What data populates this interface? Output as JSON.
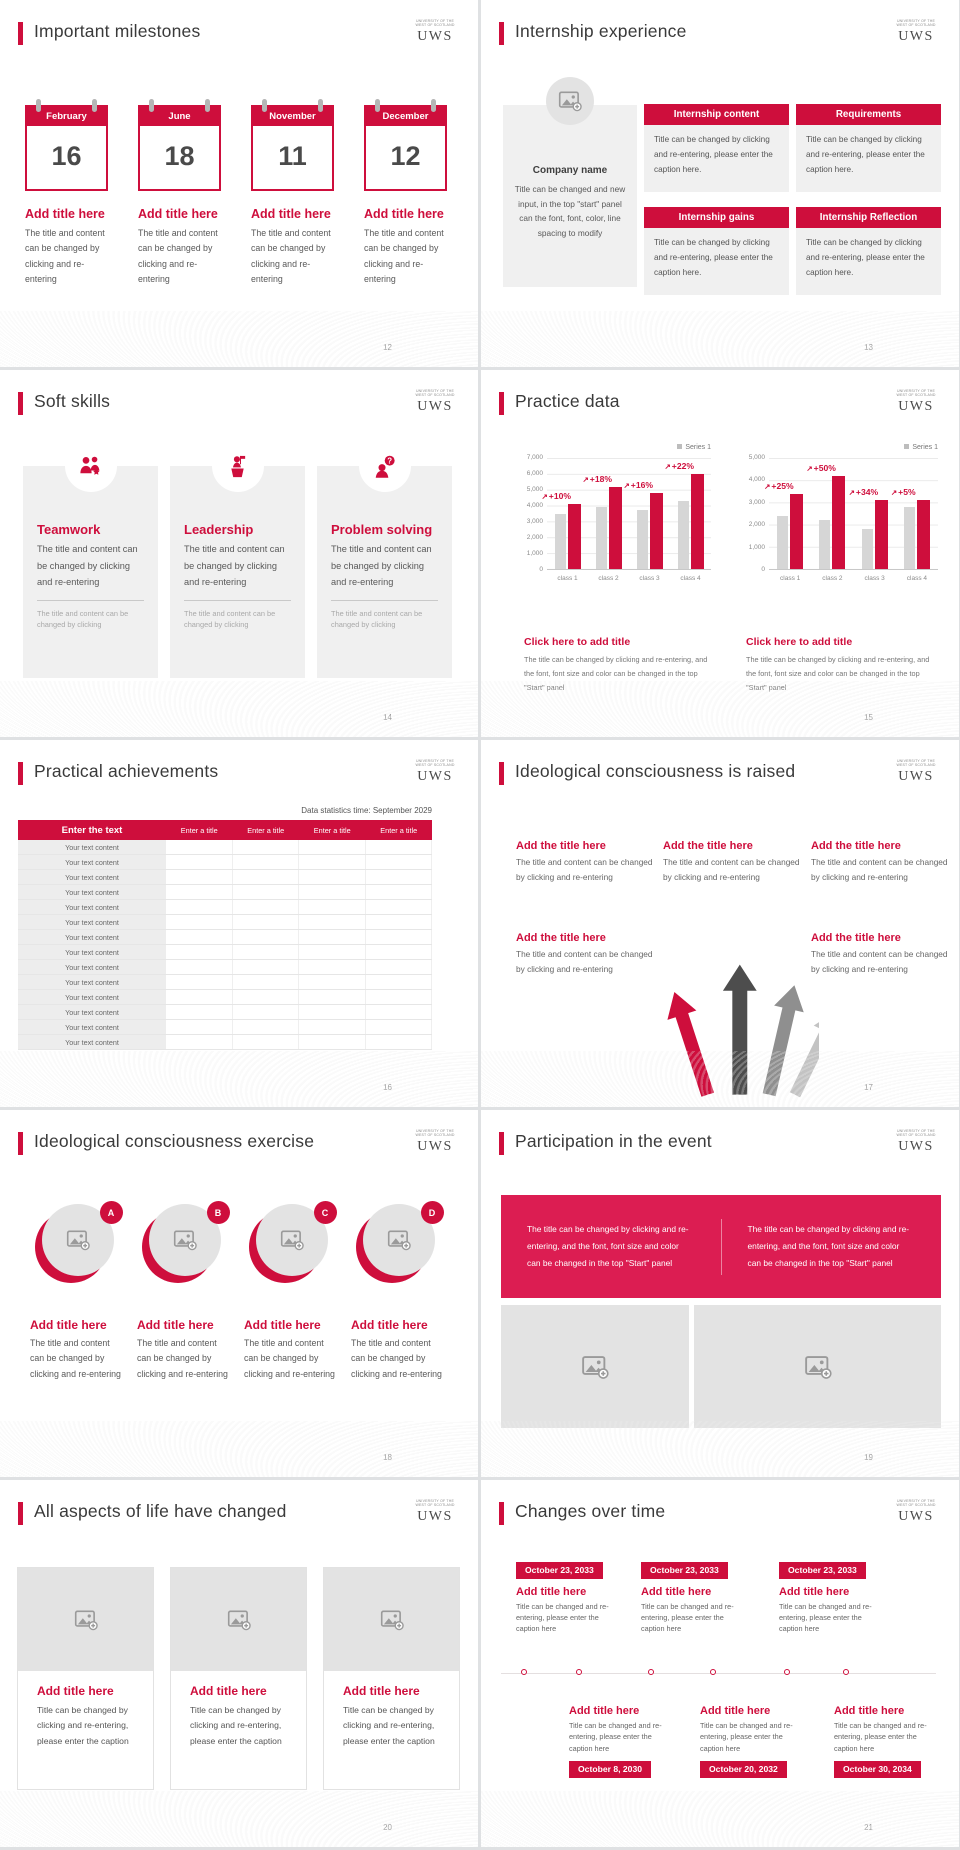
{
  "accent": "#ce0e3c",
  "accent_bright": "#dc1d52",
  "icons": {
    "growth_arrow": "↗"
  },
  "logo": {
    "small": "UNIVERSITY OF THE WEST OF SCOTLAND",
    "text": "UWS"
  },
  "chart_data": [
    {
      "type": "bar",
      "legend": "Series 1",
      "categories": [
        "class 1",
        "class 2",
        "class 3",
        "class 4"
      ],
      "series": [
        {
          "name": "baseline",
          "color": "#d6d6d6",
          "values": [
            3500,
            3900,
            3700,
            4300
          ]
        },
        {
          "name": "Series 1",
          "color": "#ce0e3c",
          "values": [
            4100,
            5200,
            4800,
            6000
          ]
        }
      ],
      "growth_labels": [
        "+10%",
        "+18%",
        "+16%",
        "+22%"
      ],
      "ylim": [
        0,
        7000
      ],
      "ytick_step": 1000,
      "grid": true,
      "legend_position": "top-right",
      "xlabel": "",
      "ylabel": ""
    },
    {
      "type": "bar",
      "legend": "Series 1",
      "categories": [
        "class 1",
        "class 2",
        "class 3",
        "class 4"
      ],
      "series": [
        {
          "name": "baseline",
          "color": "#d6d6d6",
          "values": [
            2400,
            2200,
            1800,
            2800
          ]
        },
        {
          "name": "Series 1",
          "color": "#ce0e3c",
          "values": [
            3400,
            4200,
            3100,
            3100
          ]
        }
      ],
      "growth_labels": [
        "+25%",
        "+50%",
        "+34%",
        "+5%"
      ],
      "ylim": [
        0,
        5000
      ],
      "ytick_step": 1000,
      "grid": true,
      "legend_position": "top-right",
      "xlabel": "",
      "ylabel": ""
    }
  ],
  "slides": [
    {
      "title": "Important milestones",
      "page": "12",
      "calendars": [
        {
          "month": "February",
          "day": "16",
          "heading": "Add title here",
          "body": "The title and content can be changed by clicking and re-entering"
        },
        {
          "month": "June",
          "day": "18",
          "heading": "Add title here",
          "body": "The title and content can be changed by clicking and re-entering"
        },
        {
          "month": "November",
          "day": "11",
          "heading": "Add title here",
          "body": "The title and content can be changed by clicking and re-entering"
        },
        {
          "month": "December",
          "day": "12",
          "heading": "Add title here",
          "body": "The title and content can be changed by clicking and re-entering"
        }
      ]
    },
    {
      "title": "Internship experience",
      "page": "13",
      "company": {
        "name": "Company name",
        "body": "Title can be changed and new input, in the top \"start\" panel can the font, font, color, line spacing to modify"
      },
      "boxes": [
        {
          "heading": "Internship content",
          "body": "Title can be changed by clicking and re-entering, please enter the caption here."
        },
        {
          "heading": "Requirements",
          "body": "Title can be changed by clicking and re-entering, please enter the caption here."
        },
        {
          "heading": "Internship gains",
          "body": "Title can be changed by clicking and re-entering, please enter the caption here."
        },
        {
          "heading": "Internship Reflection",
          "body": "Title can be changed by clicking and re-entering, please enter the caption here."
        }
      ]
    },
    {
      "title": "Soft skills",
      "page": "14",
      "cards": [
        {
          "heading": "Teamwork",
          "body": "The title and content can be changed by clicking and re-entering",
          "footer": "The title and content can be changed by clicking"
        },
        {
          "heading": "Leadership",
          "body": "The title and content can be changed by clicking and re-entering",
          "footer": "The title and content can be changed by clicking"
        },
        {
          "heading": "Problem solving",
          "body": "The title and content can be changed by clicking and re-entering",
          "footer": "The title and content can be changed by clicking"
        }
      ]
    },
    {
      "title": "Practice data",
      "page": "15",
      "captions": [
        {
          "heading": "Click here to add title",
          "body": "The title can be changed by clicking and re-entering, and the font, font size and color can be changed in the top \"Start\" panel"
        },
        {
          "heading": "Click here to add title",
          "body": "The title can be changed by clicking and re-entering, and the font, font size and color can be changed in the top \"Start\" panel"
        }
      ]
    },
    {
      "title": "Practical achievements",
      "page": "16",
      "stats_caption": "Data statistics time: September 2029",
      "table": {
        "header": [
          "Enter the text",
          "Enter a title",
          "Enter a title",
          "Enter a title",
          "Enter a title"
        ],
        "row_label": "Your text content",
        "row_count": 14
      }
    },
    {
      "title": "Ideological consciousness is raised",
      "page": "17",
      "blocks": [
        {
          "heading": "Add the title here",
          "body": "The title and content can be changed by clicking and re-entering"
        },
        {
          "heading": "Add the title here",
          "body": "The title and content can be changed by clicking and re-entering"
        },
        {
          "heading": "Add the title here",
          "body": "The title and content can be changed by clicking and re-entering"
        },
        {
          "heading": "Add the title here",
          "body": "The title and content can be changed by clicking and re-entering"
        },
        {
          "heading": "Add the title here",
          "body": "The title and content can be changed by clicking and re-entering"
        }
      ]
    },
    {
      "title": "Ideological consciousness exercise",
      "page": "18",
      "items": [
        {
          "badge": "A",
          "heading": "Add title here",
          "body": "The title and content can be changed by clicking and re-entering"
        },
        {
          "badge": "B",
          "heading": "Add title here",
          "body": "The title and content can be changed by clicking and re-entering"
        },
        {
          "badge": "C",
          "heading": "Add title here",
          "body": "The title and content can be changed by clicking and re-entering"
        },
        {
          "badge": "D",
          "heading": "Add title here",
          "body": "The title and content can be changed by clicking and re-entering"
        }
      ]
    },
    {
      "title": "Participation in the event",
      "page": "19",
      "banner": [
        "The title can be changed by clicking and re-entering, and the font, font size and color can be changed in the top \"Start\" panel",
        "The title can be changed by clicking and re-entering, and the font, font size and color can be changed in the top \"Start\" panel"
      ]
    },
    {
      "title": "All aspects of life have changed",
      "page": "20",
      "cards": [
        {
          "heading": "Add title here",
          "body": "Title can be changed by clicking and re-entering, please enter the caption"
        },
        {
          "heading": "Add title here",
          "body": "Title can be changed by clicking and re-entering, please enter the caption"
        },
        {
          "heading": "Add title here",
          "body": "Title can be changed by clicking and re-entering, please enter the caption"
        }
      ]
    },
    {
      "title": "Changes over time",
      "page": "21",
      "top_items": [
        {
          "date": "October 23, 2033",
          "heading": "Add title here",
          "body": "Title can be changed and re-entering, please enter the caption here"
        },
        {
          "date": "October 23, 2033",
          "heading": "Add title here",
          "body": "Title can be changed and re-entering, please enter the caption here"
        },
        {
          "date": "October 23, 2033",
          "heading": "Add title here",
          "body": "Title can be changed and re-entering, please enter the caption here"
        }
      ],
      "bottom_items": [
        {
          "date": "October 8, 2030",
          "heading": "Add title here",
          "body": "Title can be changed and re-entering, please enter the caption here"
        },
        {
          "date": "October 20, 2032",
          "heading": "Add title here",
          "body": "Title can be changed and re-entering, please enter the caption here"
        },
        {
          "date": "October 30, 2034",
          "heading": "Add title here",
          "body": "Title can be changed and re-entering, please enter the caption here"
        }
      ]
    }
  ]
}
